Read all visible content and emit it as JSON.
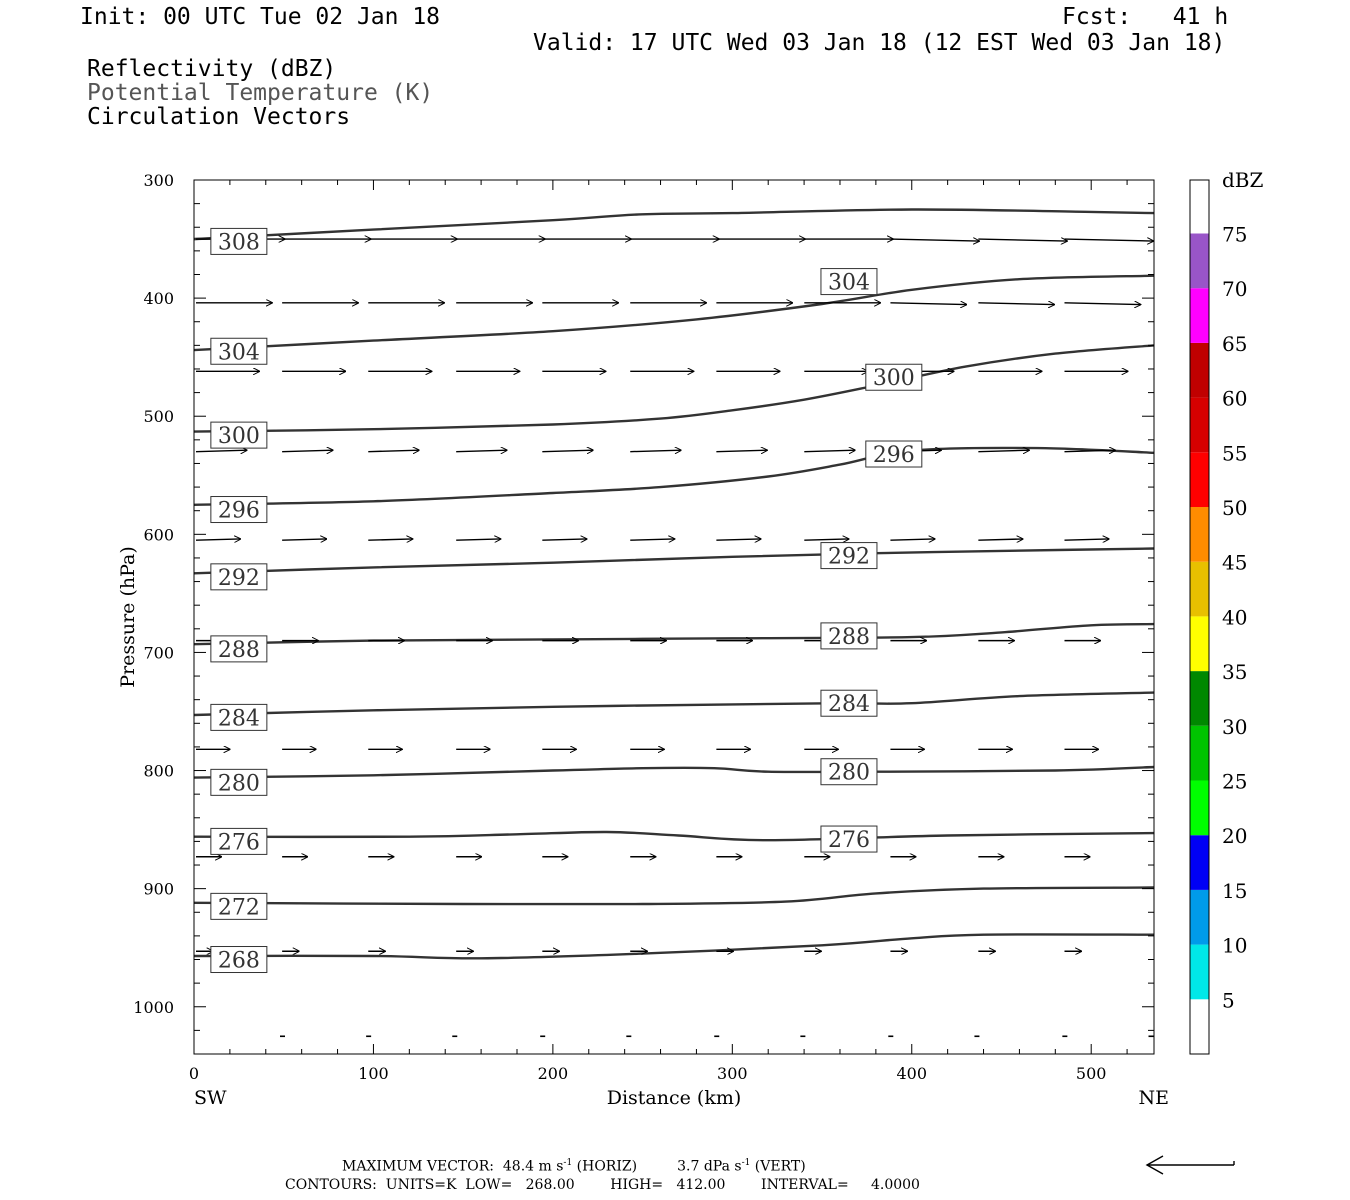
{
  "header": {
    "init": "Init: 00 UTC Tue 02 Jan 18",
    "fcst": "Fcst:   41 h",
    "valid": "Valid: 17 UTC Wed 03 Jan 18 (12 EST Wed 03 Jan 18)",
    "field1": "Reflectivity (dBZ)",
    "field2": "Potential Temperature (K)",
    "field3": "Circulation Vectors"
  },
  "chart_data": {
    "type": "cross-section",
    "xlabel": "Distance (km)",
    "ylabel": "Pressure (hPa)",
    "xlim": [
      0,
      535
    ],
    "ylim": [
      300,
      1040
    ],
    "x_ticks": [
      0,
      100,
      200,
      300,
      400,
      500
    ],
    "y_ticks": [
      300,
      400,
      500,
      600,
      700,
      800,
      900,
      1000
    ],
    "x_end_labels": {
      "left": "SW",
      "right": "NE"
    },
    "colorbar": {
      "label": "dBZ",
      "levels": [
        5,
        10,
        15,
        20,
        25,
        30,
        35,
        40,
        45,
        50,
        55,
        60,
        65,
        70,
        75
      ],
      "colors": [
        "#ffffff",
        "#00e8e8",
        "#009bea",
        "#0000f5",
        "#00ff00",
        "#00c400",
        "#008800",
        "#ffff00",
        "#e8c000",
        "#ff8c00",
        "#ff0000",
        "#d60000",
        "#c00000",
        "#ff00ff",
        "#9955c8",
        "#ffffff"
      ]
    },
    "theta_contours": [
      {
        "value": 268,
        "points": [
          [
            0,
            957
          ],
          [
            100,
            957
          ],
          [
            160,
            959
          ],
          [
            250,
            955
          ],
          [
            350,
            948
          ],
          [
            400,
            942
          ],
          [
            440,
            939
          ],
          [
            535,
            939
          ]
        ]
      },
      {
        "value": 272,
        "points": [
          [
            0,
            912
          ],
          [
            150,
            913
          ],
          [
            250,
            913
          ],
          [
            330,
            911
          ],
          [
            380,
            904
          ],
          [
            440,
            900
          ],
          [
            535,
            899
          ]
        ]
      },
      {
        "value": 276,
        "points": [
          [
            0,
            856
          ],
          [
            120,
            856
          ],
          [
            180,
            854
          ],
          [
            230,
            852
          ],
          [
            270,
            855
          ],
          [
            320,
            859
          ],
          [
            420,
            855
          ],
          [
            535,
            853
          ]
        ]
      },
      {
        "value": 280,
        "points": [
          [
            0,
            806
          ],
          [
            100,
            804
          ],
          [
            200,
            800
          ],
          [
            250,
            798
          ],
          [
            290,
            798
          ],
          [
            320,
            801
          ],
          [
            380,
            801
          ],
          [
            480,
            800
          ],
          [
            535,
            797
          ]
        ]
      },
      {
        "value": 284,
        "points": [
          [
            0,
            753
          ],
          [
            100,
            749
          ],
          [
            200,
            746
          ],
          [
            300,
            744
          ],
          [
            360,
            743
          ],
          [
            400,
            743
          ],
          [
            460,
            737
          ],
          [
            535,
            734
          ]
        ]
      },
      {
        "value": 288,
        "points": [
          [
            0,
            693
          ],
          [
            100,
            690
          ],
          [
            200,
            689
          ],
          [
            300,
            688
          ],
          [
            400,
            687
          ],
          [
            450,
            683
          ],
          [
            500,
            677
          ],
          [
            535,
            676
          ]
        ]
      },
      {
        "value": 292,
        "points": [
          [
            0,
            633
          ],
          [
            100,
            628
          ],
          [
            200,
            624
          ],
          [
            300,
            619
          ],
          [
            380,
            616
          ],
          [
            450,
            614
          ],
          [
            535,
            612
          ]
        ]
      },
      {
        "value": 296,
        "points": [
          [
            0,
            575
          ],
          [
            100,
            572
          ],
          [
            200,
            565
          ],
          [
            260,
            560
          ],
          [
            320,
            551
          ],
          [
            360,
            541
          ],
          [
            400,
            529
          ],
          [
            470,
            527
          ],
          [
            535,
            531
          ]
        ]
      },
      {
        "value": 300,
        "points": [
          [
            0,
            513
          ],
          [
            100,
            511
          ],
          [
            200,
            507
          ],
          [
            260,
            502
          ],
          [
            300,
            495
          ],
          [
            340,
            486
          ],
          [
            380,
            474
          ],
          [
            430,
            458
          ],
          [
            480,
            447
          ],
          [
            535,
            440
          ]
        ]
      },
      {
        "value": 304,
        "points": [
          [
            0,
            444
          ],
          [
            100,
            436
          ],
          [
            200,
            428
          ],
          [
            280,
            418
          ],
          [
            350,
            405
          ],
          [
            400,
            393
          ],
          [
            460,
            384
          ],
          [
            535,
            381
          ]
        ]
      },
      {
        "value": 308,
        "points": [
          [
            0,
            350
          ],
          [
            100,
            342
          ],
          [
            200,
            334
          ],
          [
            250,
            329
          ],
          [
            300,
            328
          ],
          [
            400,
            325
          ],
          [
            500,
            327
          ],
          [
            535,
            328
          ]
        ]
      },
      {
        "value": 308,
        "points": [
          [
            0,
            350
          ],
          [
            40,
            348
          ]
        ]
      }
    ],
    "theta_label_positions": [
      {
        "value": 308,
        "x": 25,
        "p": 352
      },
      {
        "value": 304,
        "x": 25,
        "p": 445
      },
      {
        "value": 300,
        "x": 25,
        "p": 516
      },
      {
        "value": 296,
        "x": 25,
        "p": 579
      },
      {
        "value": 292,
        "x": 25,
        "p": 636
      },
      {
        "value": 288,
        "x": 25,
        "p": 697
      },
      {
        "value": 284,
        "x": 25,
        "p": 755
      },
      {
        "value": 280,
        "x": 25,
        "p": 810
      },
      {
        "value": 276,
        "x": 25,
        "p": 860
      },
      {
        "value": 272,
        "x": 25,
        "p": 915
      },
      {
        "value": 268,
        "x": 25,
        "p": 960
      },
      {
        "value": 304,
        "x": 365,
        "p": 386
      },
      {
        "value": 300,
        "x": 390,
        "p": 467
      },
      {
        "value": 296,
        "x": 390,
        "p": 532
      },
      {
        "value": 292,
        "x": 365,
        "p": 618
      },
      {
        "value": 288,
        "x": 365,
        "p": 686
      },
      {
        "value": 284,
        "x": 365,
        "p": 743
      },
      {
        "value": 280,
        "x": 365,
        "p": 801
      },
      {
        "value": 276,
        "x": 365,
        "p": 858
      }
    ],
    "vector_levels": [
      {
        "p": 350,
        "len": 42,
        "dy": 0
      },
      {
        "p": 404,
        "len": 36,
        "dy": 0
      },
      {
        "p": 462,
        "len": 30,
        "dy": 0
      },
      {
        "p": 530,
        "len": 24,
        "dy": -1
      },
      {
        "p": 605,
        "len": 21,
        "dy": -1
      },
      {
        "p": 690,
        "len": 17,
        "dy": 0
      },
      {
        "p": 782,
        "len": 16,
        "dy": 0
      },
      {
        "p": 873,
        "len": 12,
        "dy": 0
      },
      {
        "p": 953,
        "len": 8,
        "dy": 0
      },
      {
        "p": 1025,
        "len": 4,
        "dy": 0
      }
    ],
    "vector_x_positions": [
      0,
      48,
      96,
      145,
      193,
      242,
      290,
      339,
      387,
      436,
      484
    ],
    "maximum_vector": {
      "horiz": "48.4",
      "vert": "3.7"
    }
  },
  "footer": {
    "maxvec_prefix": "MAXIMUM VECTOR:  48.4 m s",
    "maxvec_mid": " (HORIZ)         3.7 dPa s",
    "maxvec_suffix": " (VERT)",
    "sup": "-1",
    "contours": "CONTOURS:  UNITS=K  LOW=   268.00        HIGH=   412.00        INTERVAL=     4.0000"
  }
}
